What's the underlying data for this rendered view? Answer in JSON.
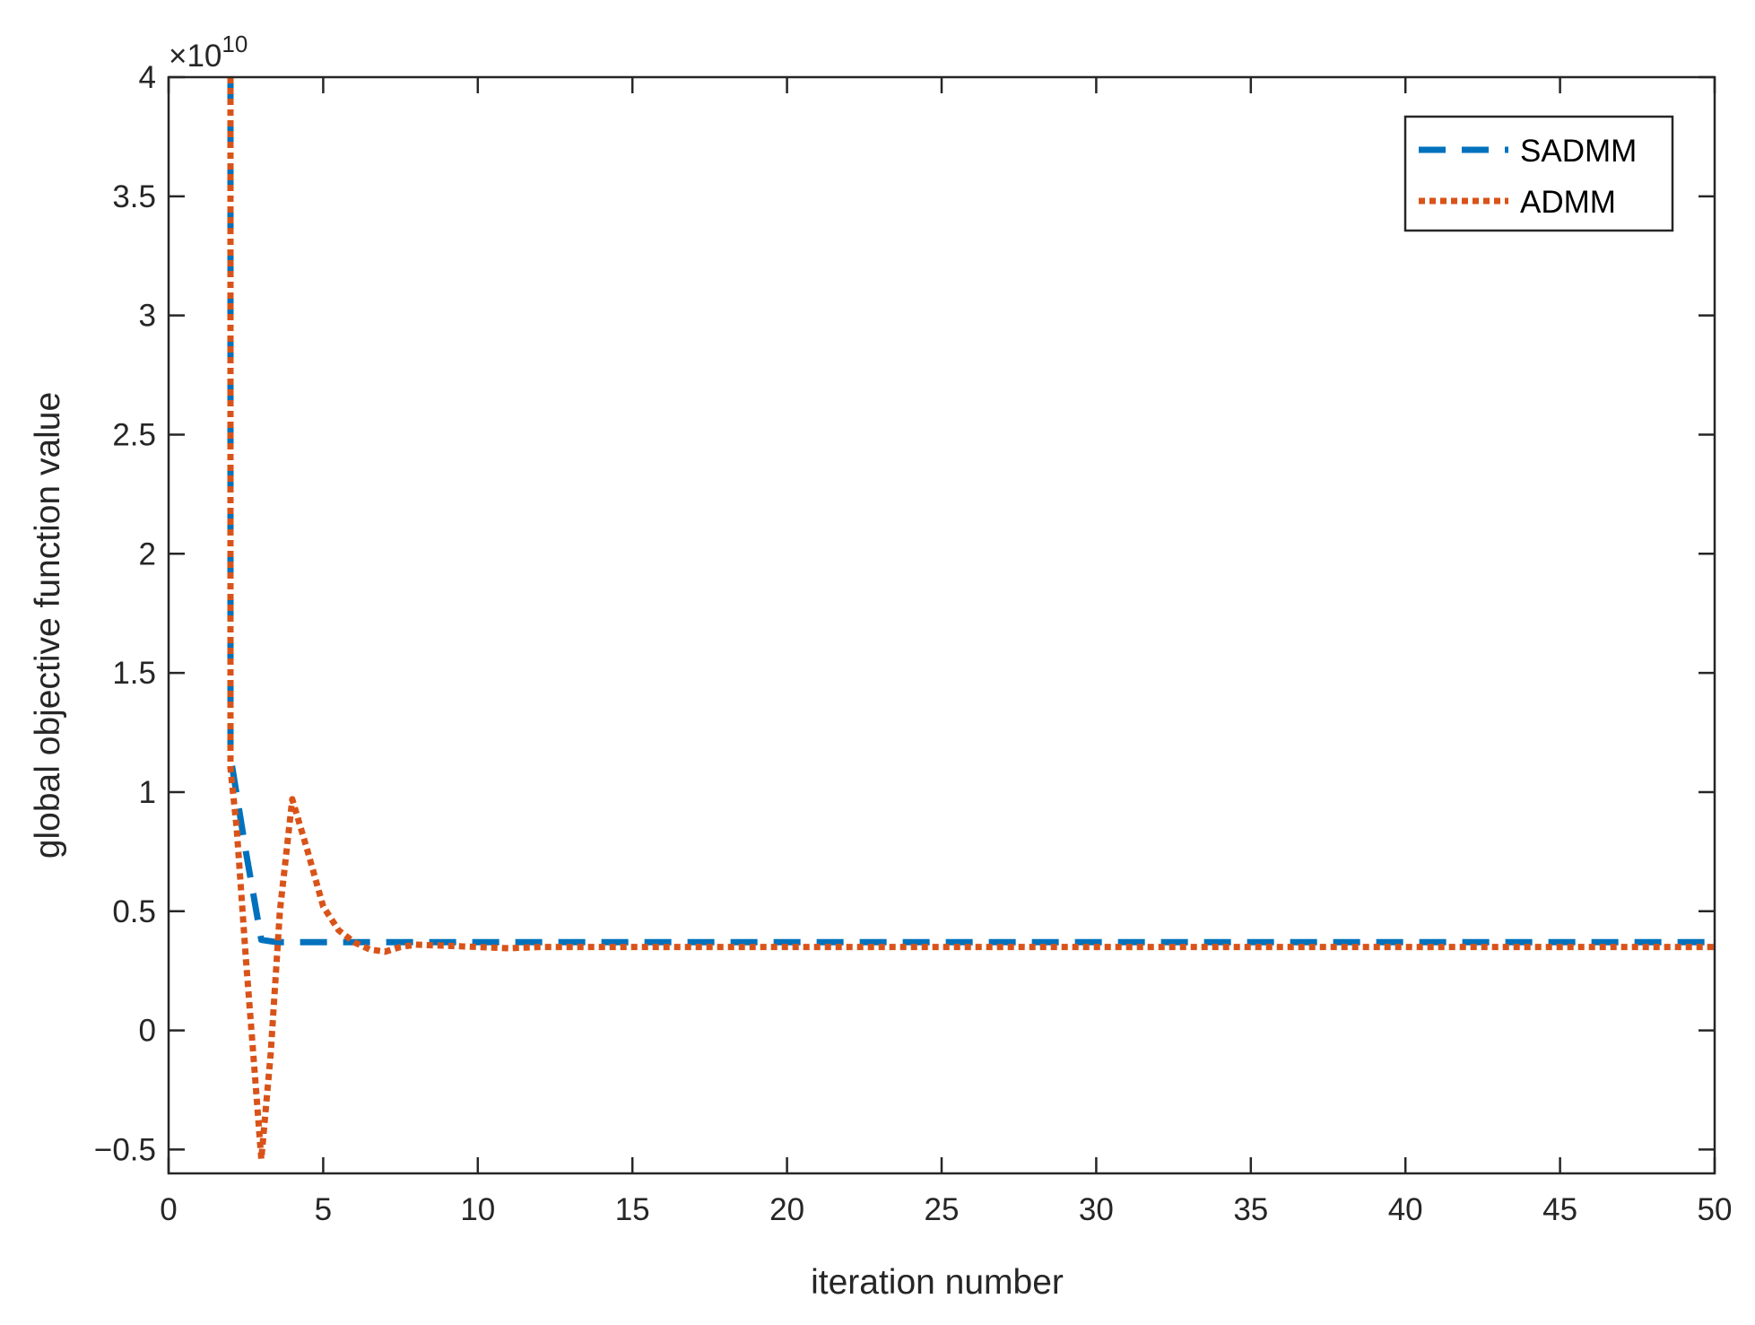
{
  "chart_data": {
    "type": "line",
    "title": "",
    "xlabel": "iteration number",
    "ylabel": "global objective function value",
    "y_exponent_base": "×10",
    "y_exponent": "10",
    "xlim": [
      0,
      50
    ],
    "ylim": [
      -0.6,
      4
    ],
    "x_ticks": [
      0,
      5,
      10,
      15,
      20,
      25,
      30,
      35,
      40,
      45,
      50
    ],
    "y_ticks": [
      -0.5,
      0,
      0.5,
      1,
      1.5,
      2,
      2.5,
      3,
      3.5,
      4
    ],
    "x_tick_labels": [
      "0",
      "5",
      "10",
      "15",
      "20",
      "25",
      "30",
      "35",
      "40",
      "45",
      "50"
    ],
    "y_tick_labels": [
      "−0.5",
      "0",
      "0.5",
      "1",
      "1.5",
      "2",
      "2.5",
      "3",
      "3.5",
      "4"
    ],
    "grid": false,
    "legend_position": "top-right",
    "series": [
      {
        "name": "SADMM",
        "color": "#0072BD",
        "dash": "dashed",
        "x": [
          2,
          2,
          2.5,
          3,
          3.5,
          4,
          5,
          6,
          7,
          8,
          9,
          10,
          15,
          20,
          25,
          30,
          35,
          40,
          45,
          50
        ],
        "y": [
          4.0,
          1.15,
          0.75,
          0.38,
          0.37,
          0.37,
          0.37,
          0.37,
          0.37,
          0.37,
          0.37,
          0.37,
          0.37,
          0.37,
          0.37,
          0.37,
          0.37,
          0.37,
          0.37,
          0.37
        ]
      },
      {
        "name": "ADMM",
        "color": "#D95319",
        "dash": "dotted",
        "x": [
          2,
          2,
          2.2,
          2.5,
          2.8,
          3,
          3.3,
          3.6,
          4,
          4.5,
          5,
          5.5,
          6,
          6.5,
          7,
          7.5,
          8,
          9,
          10,
          11,
          12,
          15,
          20,
          25,
          30,
          35,
          40,
          45,
          50
        ],
        "y": [
          4.0,
          1.1,
          0.85,
          0.3,
          -0.2,
          -0.54,
          -0.1,
          0.5,
          0.97,
          0.75,
          0.52,
          0.42,
          0.37,
          0.34,
          0.33,
          0.35,
          0.36,
          0.355,
          0.35,
          0.345,
          0.35,
          0.35,
          0.35,
          0.35,
          0.35,
          0.35,
          0.35,
          0.35,
          0.35
        ]
      }
    ]
  }
}
